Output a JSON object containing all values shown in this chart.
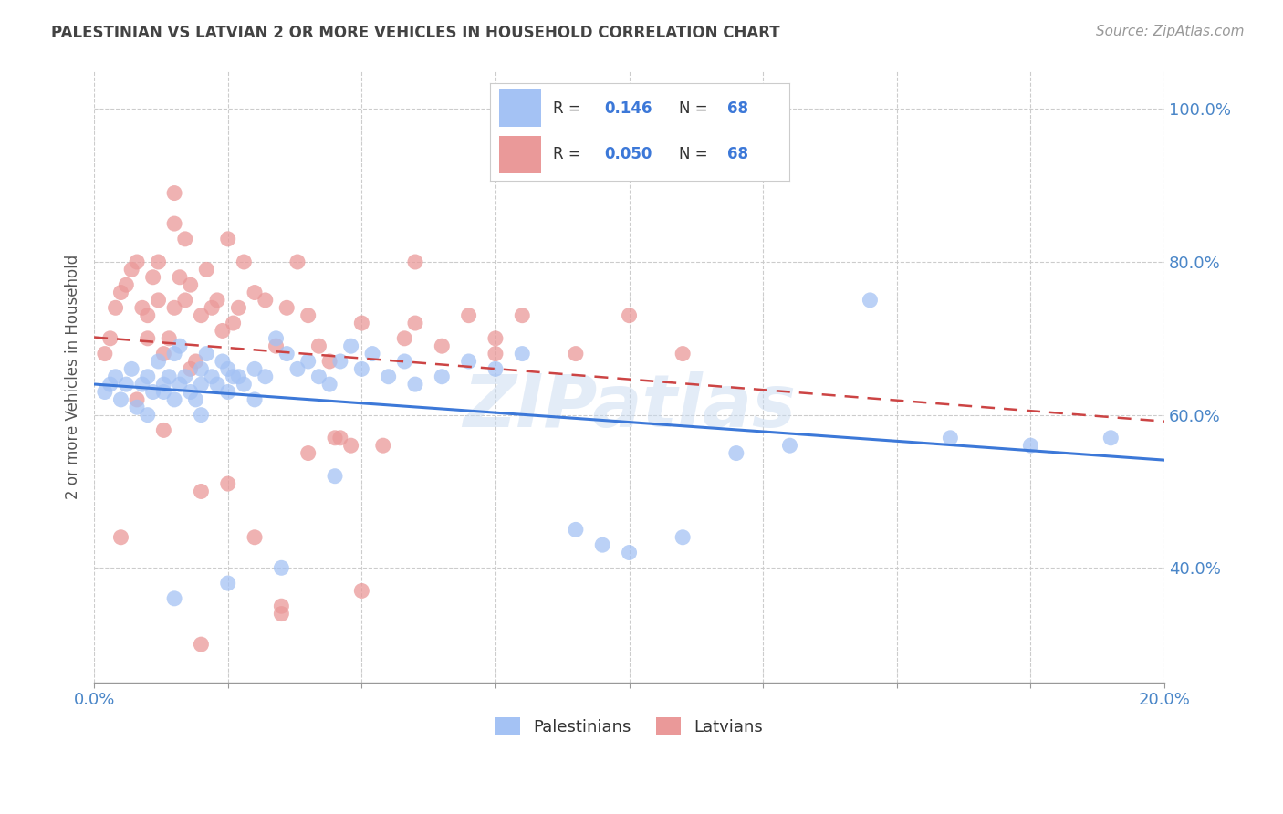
{
  "title": "PALESTINIAN VS LATVIAN 2 OR MORE VEHICLES IN HOUSEHOLD CORRELATION CHART",
  "source": "Source: ZipAtlas.com",
  "ylabel": "2 or more Vehicles in Household",
  "xlim": [
    0.0,
    20.0
  ],
  "ylim": [
    25.0,
    105.0
  ],
  "yticks": [
    40.0,
    60.0,
    80.0,
    100.0
  ],
  "ytick_labels": [
    "40.0%",
    "60.0%",
    "80.0%",
    "100.0%"
  ],
  "xticks": [
    0.0,
    2.5,
    5.0,
    7.5,
    10.0,
    12.5,
    15.0,
    17.5,
    20.0
  ],
  "blue_R": "0.146",
  "blue_N": "68",
  "pink_R": "0.050",
  "pink_N": "68",
  "legend_label_blue": "Palestinians",
  "legend_label_pink": "Latvians",
  "blue_color": "#a4c2f4",
  "pink_color": "#ea9999",
  "blue_line_color": "#3c78d8",
  "pink_line_color": "#cc4444",
  "title_color": "#434343",
  "source_color": "#999999",
  "axis_label_color": "#4a86c8",
  "grid_color": "#cccccc",
  "background_color": "#ffffff",
  "blue_scatter_x": [
    0.2,
    0.3,
    0.4,
    0.5,
    0.6,
    0.7,
    0.8,
    0.9,
    1.0,
    1.0,
    1.1,
    1.2,
    1.3,
    1.3,
    1.4,
    1.5,
    1.5,
    1.6,
    1.6,
    1.7,
    1.8,
    1.9,
    2.0,
    2.0,
    2.0,
    2.1,
    2.2,
    2.3,
    2.4,
    2.5,
    2.5,
    2.6,
    2.7,
    2.8,
    3.0,
    3.0,
    3.2,
    3.4,
    3.6,
    3.8,
    4.0,
    4.2,
    4.4,
    4.6,
    4.8,
    5.0,
    5.2,
    5.5,
    5.8,
    6.0,
    6.5,
    7.0,
    7.5,
    8.0,
    9.0,
    9.5,
    10.0,
    11.0,
    12.0,
    13.0,
    14.5,
    16.0,
    17.5,
    19.0,
    1.5,
    2.5,
    3.5,
    4.5
  ],
  "blue_scatter_y": [
    63,
    64,
    65,
    62,
    64,
    66,
    61,
    64,
    60,
    65,
    63,
    67,
    64,
    63,
    65,
    62,
    68,
    69,
    64,
    65,
    63,
    62,
    60,
    64,
    66,
    68,
    65,
    64,
    67,
    63,
    66,
    65,
    65,
    64,
    62,
    66,
    65,
    70,
    68,
    66,
    67,
    65,
    64,
    67,
    69,
    66,
    68,
    65,
    67,
    64,
    65,
    67,
    66,
    68,
    45,
    43,
    42,
    44,
    55,
    56,
    75,
    57,
    56,
    57,
    36,
    38,
    40,
    52
  ],
  "pink_scatter_x": [
    0.2,
    0.3,
    0.4,
    0.5,
    0.6,
    0.7,
    0.8,
    0.9,
    1.0,
    1.0,
    1.1,
    1.2,
    1.2,
    1.3,
    1.4,
    1.5,
    1.5,
    1.6,
    1.7,
    1.7,
    1.8,
    1.9,
    2.0,
    2.1,
    2.2,
    2.3,
    2.4,
    2.5,
    2.6,
    2.7,
    2.8,
    3.0,
    3.2,
    3.4,
    3.6,
    3.8,
    4.0,
    4.2,
    4.4,
    4.6,
    4.8,
    5.0,
    5.4,
    5.8,
    6.0,
    6.5,
    7.0,
    7.5,
    8.0,
    9.0,
    10.0,
    11.0,
    1.5,
    2.0,
    2.5,
    3.0,
    4.0,
    5.0,
    0.8,
    1.3,
    2.0,
    3.5,
    0.5,
    1.8,
    3.5,
    4.5,
    6.0,
    7.5
  ],
  "pink_scatter_y": [
    68,
    70,
    74,
    76,
    77,
    79,
    80,
    74,
    73,
    70,
    78,
    80,
    75,
    68,
    70,
    74,
    85,
    78,
    83,
    75,
    77,
    67,
    73,
    79,
    74,
    75,
    71,
    83,
    72,
    74,
    80,
    76,
    75,
    69,
    74,
    80,
    73,
    69,
    67,
    57,
    56,
    72,
    56,
    70,
    80,
    69,
    73,
    70,
    73,
    68,
    73,
    68,
    89,
    50,
    51,
    44,
    55,
    37,
    62,
    58,
    30,
    34,
    44,
    66,
    35,
    57,
    72,
    68
  ]
}
